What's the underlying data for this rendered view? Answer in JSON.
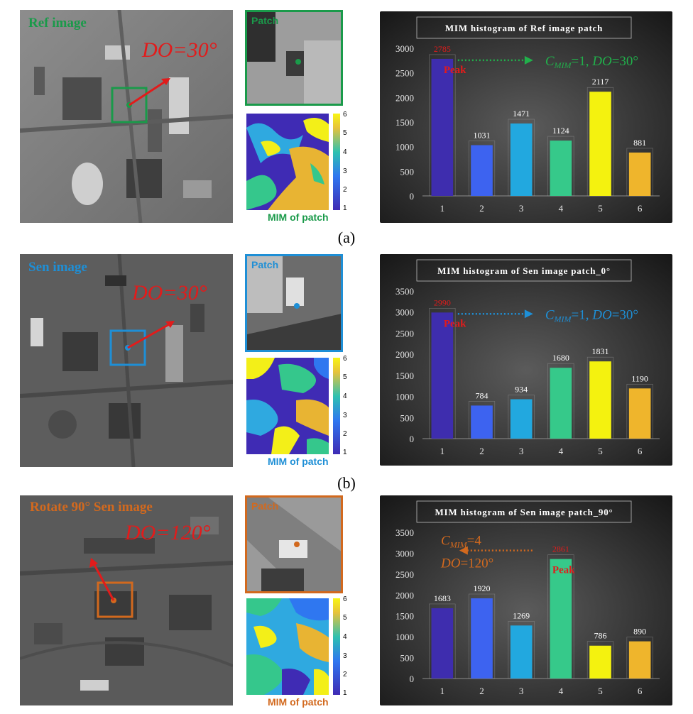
{
  "panels": [
    {
      "caption": "(a)",
      "accent": "#1a9a4a",
      "image_label": "Ref image",
      "do_label": "DO=30°",
      "patch_label": "Patch",
      "mim_label": "MIM of patch",
      "colorbar_ticks": [
        "1",
        "2",
        "3",
        "4",
        "5",
        "6"
      ],
      "chart_data": {
        "type": "bar",
        "title": "MIM histogram of Ref image patch",
        "categories": [
          "1",
          "2",
          "3",
          "4",
          "5",
          "6"
        ],
        "values": [
          2785,
          1031,
          1471,
          1124,
          2117,
          881
        ],
        "ylim": [
          0,
          3000
        ],
        "yticks": [
          0,
          500,
          1000,
          1500,
          2000,
          2500,
          3000
        ],
        "bar_colors": [
          "#3e2dae",
          "#3d63f0",
          "#22a8df",
          "#36c98a",
          "#f4f20f",
          "#efb52c"
        ],
        "peak_label": "Peak",
        "annotation": {
          "c": "C",
          "sub": "MIM",
          "eq": "=1, ",
          "do": "DO",
          "val": "=30°"
        },
        "annotation_color": "#21b04b",
        "legend": "none",
        "grid": false
      }
    },
    {
      "caption": "(b)",
      "accent": "#1e8fd6",
      "image_label": "Sen image",
      "do_label": "DO=30°",
      "patch_label": "Patch",
      "mim_label": "MIM of patch",
      "colorbar_ticks": [
        "1",
        "2",
        "3",
        "4",
        "5",
        "6"
      ],
      "chart_data": {
        "type": "bar",
        "title": "MIM histogram of Sen image patch_0°",
        "categories": [
          "1",
          "2",
          "3",
          "4",
          "5",
          "6"
        ],
        "values": [
          2990,
          784,
          934,
          1680,
          1831,
          1190
        ],
        "ylim": [
          0,
          3500
        ],
        "yticks": [
          0,
          500,
          1000,
          1500,
          2000,
          2500,
          3000,
          3500
        ],
        "bar_colors": [
          "#3e2dae",
          "#3d63f0",
          "#22a8df",
          "#36c98a",
          "#f4f20f",
          "#efb52c"
        ],
        "peak_label": "Peak",
        "annotation": {
          "c": "C",
          "sub": "MIM",
          "eq": "=1, ",
          "do": "DO",
          "val": "=30°"
        },
        "annotation_color": "#1e8fd6",
        "legend": "none",
        "grid": false
      }
    },
    {
      "caption": "",
      "accent": "#d2691e",
      "image_label": "Rotate 90° Sen image",
      "do_label": "DO=120°",
      "patch_label": "Patch",
      "mim_label": "MIM of patch",
      "colorbar_ticks": [
        "1",
        "2",
        "3",
        "4",
        "5",
        "6"
      ],
      "chart_data": {
        "type": "bar",
        "title": "MIM histogram of Sen image patch_90°",
        "categories": [
          "1",
          "2",
          "3",
          "4",
          "5",
          "6"
        ],
        "values": [
          1683,
          1920,
          1269,
          2861,
          786,
          890
        ],
        "ylim": [
          0,
          3500
        ],
        "yticks": [
          0,
          500,
          1000,
          1500,
          2000,
          2500,
          3000,
          3500
        ],
        "bar_colors": [
          "#3e2dae",
          "#3d63f0",
          "#22a8df",
          "#36c98a",
          "#f4f20f",
          "#efb52c"
        ],
        "peak_label": "Peak",
        "annotation": {
          "c": "C",
          "sub": "MIM",
          "eq": "=4",
          "do": "DO",
          "val": "=120°"
        },
        "annotation_color": "#d2691e",
        "legend": "none",
        "grid": false
      }
    }
  ]
}
